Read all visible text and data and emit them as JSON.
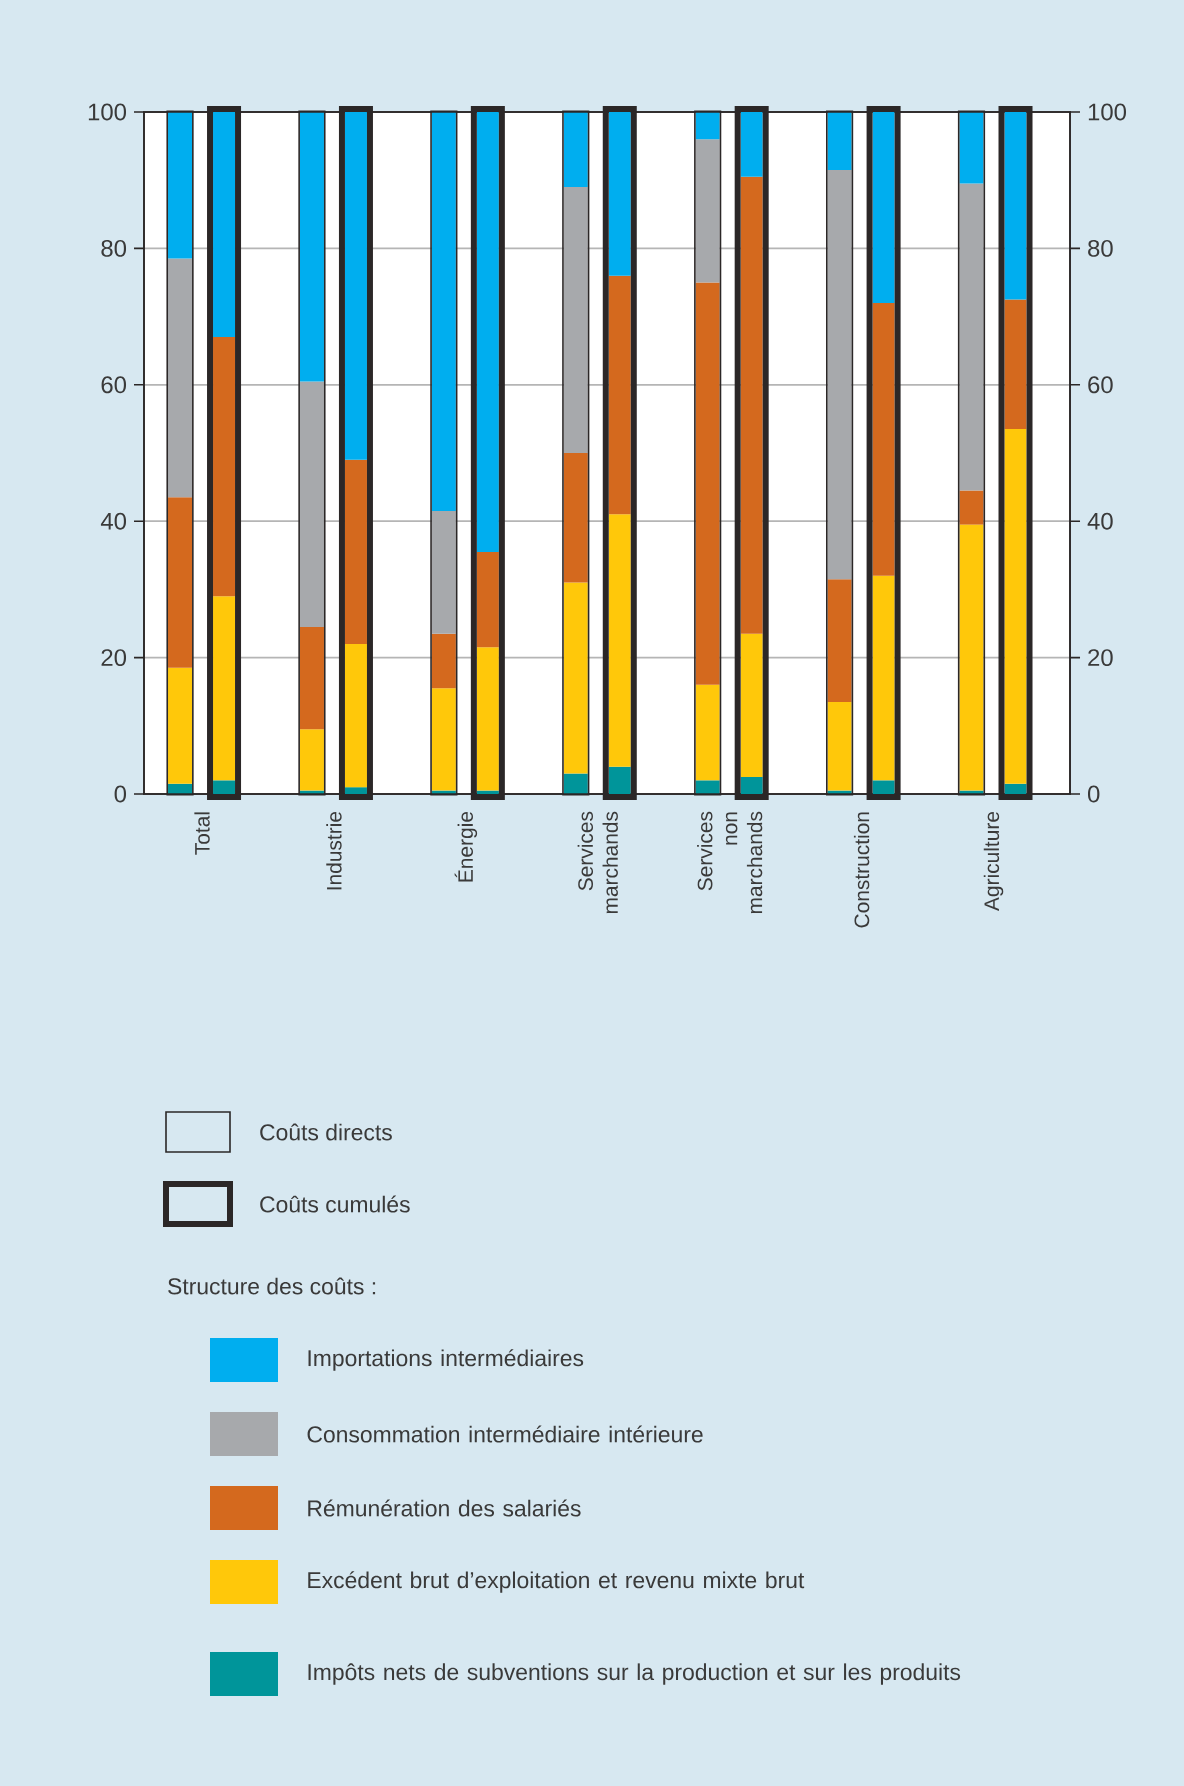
{
  "chart_data": [
    {
      "type": "bar",
      "stacked": true,
      "categories": [
        "Total",
        "Industrie",
        "Énergie",
        "Services marchands",
        "Services non marchands",
        "Construction",
        "Agriculture"
      ],
      "series": [
        {
          "name": "Impôts nets de subventions sur la production et sur les produits",
          "color": "#00959a",
          "values": [
            1.5,
            0.5,
            0.5,
            3,
            2,
            0.5,
            0.5
          ]
        },
        {
          "name": "Excédent brut d’exploitation et revenu mixte brut",
          "color": "#ffc80a",
          "values": [
            17,
            9,
            15,
            28,
            14,
            13,
            39
          ]
        },
        {
          "name": "Rémunération des salariés",
          "color": "#d4691e",
          "values": [
            25,
            15,
            8,
            19,
            59,
            18,
            5
          ]
        },
        {
          "name": "Consommation intermédiaire intérieure",
          "color": "#a7a9ac",
          "values": [
            35,
            36,
            18,
            39,
            21,
            60,
            45
          ]
        },
        {
          "name": "Importations intermédiaires",
          "color": "#00aeef",
          "values": [
            21.5,
            39.5,
            58.5,
            11,
            4,
            8.5,
            10.5
          ]
        }
      ],
      "ylim": [
        0,
        100
      ],
      "yticks": [
        0,
        20,
        40,
        60,
        80,
        100
      ],
      "grid": "y",
      "legend": "bottom",
      "legend_title": "Structure des coûts :",
      "annotations": [
        "Coûts directs"
      ]
    },
    {
      "type": "bar",
      "stacked": true,
      "categories": [
        null,
        null,
        null,
        null,
        null,
        null,
        null
      ],
      "series": [
        {
          "color": "#00959a",
          "values": [
            2,
            1,
            0.5,
            4,
            2.5,
            2,
            1.5
          ]
        },
        {
          "color": "#ffc80a",
          "values": [
            27,
            21,
            21,
            37,
            21,
            30,
            52
          ]
        },
        {
          "color": "#d4691e",
          "values": [
            38,
            27,
            14,
            35,
            67,
            40,
            19
          ]
        },
        {
          "color": "#00aeef",
          "values": [
            33,
            51,
            64.5,
            24,
            9.5,
            28,
            27.5
          ]
        }
      ],
      "ylim": [
        0,
        100
      ],
      "yticks": [
        0,
        20,
        40,
        60,
        80,
        100
      ],
      "tick_labels": "y",
      "annotations": [
        "Coûts cumulés"
      ]
    }
  ]
}
